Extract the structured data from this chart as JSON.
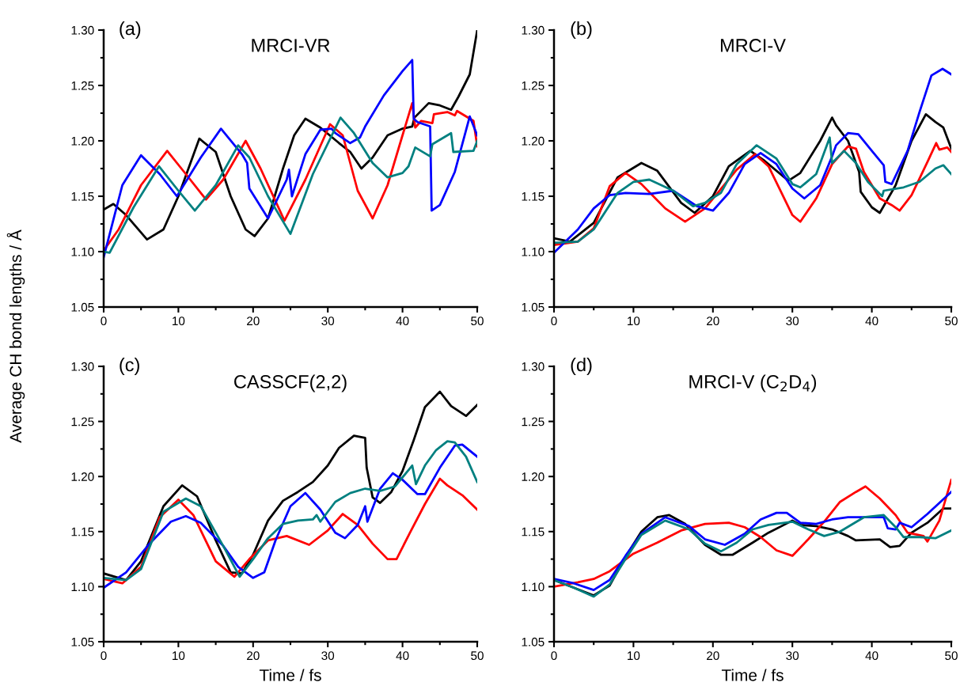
{
  "chart_data": [
    {
      "type": "line",
      "title": "MRCI-VR",
      "annotations": [
        "(a)"
      ],
      "ylabel": "Average CH bond lengths / Å",
      "xlim": [
        0,
        50
      ],
      "ylim": [
        1.05,
        1.3
      ],
      "xticks": [
        0,
        {
          "value": 5,
          "label": null
        },
        10,
        {
          "value": 15,
          "label": null
        },
        20,
        {
          "value": 25,
          "label": null
        },
        30,
        {
          "value": 35,
          "label": null
        },
        40,
        {
          "value": 45,
          "label": null
        },
        50
      ],
      "yticks": [
        {
          "value": 1.05,
          "label": "1.05"
        },
        {
          "value": 1.075,
          "label": null
        },
        {
          "value": 1.1,
          "label": "1.10"
        },
        {
          "value": 1.125,
          "label": null
        },
        {
          "value": 1.15,
          "label": "1.15"
        },
        {
          "value": 1.175,
          "label": null
        },
        {
          "value": 1.2,
          "label": "1.20"
        },
        {
          "value": 1.225,
          "label": null
        },
        {
          "value": 1.25,
          "label": "1.25"
        },
        {
          "value": 1.275,
          "label": null
        },
        {
          "value": 1.3,
          "label": "1.30"
        }
      ],
      "series": [
        {
          "color": "#000000",
          "x": [
            0,
            1.3,
            3,
            5.8,
            8,
            10,
            12.8,
            15,
            17,
            19,
            20.2,
            22,
            24,
            25.5,
            27,
            29,
            31.5,
            33,
            34.5,
            36,
            38,
            40,
            41.3,
            41.6,
            43.5,
            45,
            46.5,
            47.5,
            49,
            50
          ],
          "values": [
            1.138,
            1.143,
            1.133,
            1.111,
            1.12,
            1.15,
            1.202,
            1.19,
            1.15,
            1.12,
            1.114,
            1.13,
            1.175,
            1.205,
            1.22,
            1.212,
            1.198,
            1.19,
            1.175,
            1.185,
            1.205,
            1.211,
            1.213,
            1.221,
            1.234,
            1.232,
            1.228,
            1.24,
            1.26,
            1.3
          ]
        },
        {
          "color": "#ff0000",
          "x": [
            0,
            2,
            5,
            8.5,
            11,
            13.7,
            16,
            19,
            21,
            24.2,
            27,
            30.3,
            32,
            34,
            36,
            38,
            40,
            41.3,
            41.7,
            42.5,
            44,
            44.2,
            46,
            47,
            47.3,
            49.5,
            50
          ],
          "values": [
            1.101,
            1.12,
            1.16,
            1.191,
            1.17,
            1.147,
            1.165,
            1.2,
            1.175,
            1.128,
            1.165,
            1.215,
            1.205,
            1.155,
            1.13,
            1.16,
            1.205,
            1.234,
            1.212,
            1.218,
            1.216,
            1.224,
            1.226,
            1.223,
            1.227,
            1.218,
            1.195
          ]
        },
        {
          "color": "#0000ff",
          "x": [
            0,
            2.5,
            5,
            7.5,
            9.8,
            13,
            15.7,
            18.5,
            19.2,
            19.5,
            22,
            24.5,
            24.8,
            25.2,
            27,
            29,
            30.5,
            31,
            33,
            34.3,
            35,
            37.5,
            40,
            41.3,
            41.5,
            42,
            43.7,
            43.9,
            45,
            47,
            49,
            50
          ],
          "values": [
            1.095,
            1.16,
            1.187,
            1.17,
            1.15,
            1.185,
            1.211,
            1.188,
            1.18,
            1.157,
            1.13,
            1.165,
            1.174,
            1.15,
            1.188,
            1.21,
            1.211,
            1.207,
            1.198,
            1.203,
            1.213,
            1.241,
            1.263,
            1.273,
            1.22,
            1.217,
            1.213,
            1.137,
            1.142,
            1.172,
            1.222,
            1.205
          ]
        },
        {
          "color": "#008080",
          "x": [
            0,
            0.8,
            4,
            7.4,
            10,
            12.2,
            15,
            18,
            19.5,
            22,
            25,
            28,
            31.7,
            33.5,
            36,
            38,
            40,
            40.8,
            41.7,
            43.7,
            44,
            46.5,
            46.8,
            49.5,
            50
          ],
          "values": [
            1.1,
            1.099,
            1.14,
            1.177,
            1.155,
            1.137,
            1.16,
            1.196,
            1.185,
            1.15,
            1.116,
            1.17,
            1.221,
            1.207,
            1.18,
            1.167,
            1.171,
            1.177,
            1.194,
            1.186,
            1.197,
            1.207,
            1.19,
            1.191,
            1.2
          ]
        }
      ]
    },
    {
      "type": "line",
      "title": "MRCI-V",
      "annotations": [
        "(b)"
      ],
      "xlim": [
        0,
        50
      ],
      "ylim": [
        1.05,
        1.3
      ],
      "xticks": [
        0,
        {
          "value": 5,
          "label": null
        },
        10,
        {
          "value": 15,
          "label": null
        },
        20,
        {
          "value": 25,
          "label": null
        },
        30,
        {
          "value": 35,
          "label": null
        },
        40,
        {
          "value": 45,
          "label": null
        },
        50
      ],
      "yticks": [
        {
          "value": 1.05,
          "label": "1.05"
        },
        {
          "value": 1.075,
          "label": null
        },
        {
          "value": 1.1,
          "label": "1.10"
        },
        {
          "value": 1.125,
          "label": null
        },
        {
          "value": 1.15,
          "label": "1.15"
        },
        {
          "value": 1.175,
          "label": null
        },
        {
          "value": 1.2,
          "label": "1.20"
        },
        {
          "value": 1.225,
          "label": null
        },
        {
          "value": 1.25,
          "label": "1.25"
        },
        {
          "value": 1.275,
          "label": null
        },
        {
          "value": 1.3,
          "label": "1.30"
        }
      ],
      "series": [
        {
          "color": "#000000",
          "x": [
            0,
            2,
            5,
            8,
            11,
            13,
            16,
            17.7,
            20,
            22,
            24.7,
            26.5,
            29.5,
            31,
            33.5,
            35,
            35.5,
            37,
            38.4,
            38.6,
            40,
            41,
            43,
            45,
            46.8,
            48,
            49,
            50
          ],
          "values": [
            1.112,
            1.109,
            1.126,
            1.167,
            1.18,
            1.173,
            1.144,
            1.135,
            1.15,
            1.177,
            1.191,
            1.182,
            1.164,
            1.171,
            1.2,
            1.221,
            1.214,
            1.2,
            1.172,
            1.154,
            1.14,
            1.135,
            1.16,
            1.2,
            1.224,
            1.217,
            1.212,
            1.193
          ]
        },
        {
          "color": "#ff0000",
          "x": [
            0,
            3,
            5,
            7,
            9,
            11,
            14,
            16.5,
            19,
            23,
            25.3,
            27,
            30,
            31,
            33,
            35,
            37,
            38,
            39,
            41,
            42.5,
            43.5,
            45,
            47,
            48.1,
            48.5,
            49.5,
            50
          ],
          "values": [
            1.106,
            1.109,
            1.121,
            1.159,
            1.171,
            1.161,
            1.139,
            1.127,
            1.139,
            1.174,
            1.188,
            1.177,
            1.133,
            1.127,
            1.148,
            1.179,
            1.195,
            1.193,
            1.172,
            1.148,
            1.142,
            1.137,
            1.151,
            1.181,
            1.198,
            1.192,
            1.194,
            1.19
          ]
        },
        {
          "color": "#0000ff",
          "x": [
            0,
            3,
            5,
            7,
            9,
            12,
            15,
            18,
            20,
            22,
            24,
            26,
            28,
            30,
            31.5,
            33.5,
            35,
            35.5,
            37,
            38.3,
            40,
            41.5,
            41.7,
            42.5,
            44.5,
            46,
            47.5,
            48.9,
            50
          ],
          "values": [
            1.099,
            1.12,
            1.139,
            1.151,
            1.153,
            1.152,
            1.155,
            1.141,
            1.137,
            1.153,
            1.179,
            1.189,
            1.179,
            1.157,
            1.148,
            1.16,
            1.186,
            1.196,
            1.207,
            1.206,
            1.191,
            1.178,
            1.163,
            1.161,
            1.191,
            1.226,
            1.259,
            1.265,
            1.26
          ]
        },
        {
          "color": "#008080",
          "x": [
            0,
            3,
            5,
            8,
            10,
            12,
            15,
            17.5,
            19,
            21,
            23,
            25.5,
            28,
            30,
            31,
            33,
            34.7,
            35,
            36.5,
            38,
            39.5,
            41.3,
            41.5,
            44,
            46,
            48,
            49,
            50
          ],
          "values": [
            1.108,
            1.109,
            1.12,
            1.153,
            1.163,
            1.165,
            1.155,
            1.141,
            1.144,
            1.153,
            1.179,
            1.196,
            1.184,
            1.161,
            1.158,
            1.17,
            1.203,
            1.18,
            1.191,
            1.18,
            1.163,
            1.15,
            1.155,
            1.158,
            1.163,
            1.175,
            1.178,
            1.17
          ]
        }
      ]
    },
    {
      "type": "line",
      "title": "CASSCF(2,2)",
      "annotations": [
        "(c)"
      ],
      "xlabel": "Time / fs",
      "xlim": [
        0,
        50
      ],
      "ylim": [
        1.05,
        1.3
      ],
      "xticks": [
        0,
        {
          "value": 5,
          "label": null
        },
        10,
        {
          "value": 15,
          "label": null
        },
        20,
        {
          "value": 25,
          "label": null
        },
        30,
        {
          "value": 35,
          "label": null
        },
        40,
        {
          "value": 45,
          "label": null
        },
        50
      ],
      "yticks": [
        {
          "value": 1.05,
          "label": "1.05"
        },
        {
          "value": 1.075,
          "label": null
        },
        {
          "value": 1.1,
          "label": "1.10"
        },
        {
          "value": 1.125,
          "label": null
        },
        {
          "value": 1.15,
          "label": "1.15"
        },
        {
          "value": 1.175,
          "label": null
        },
        {
          "value": 1.2,
          "label": "1.20"
        },
        {
          "value": 1.225,
          "label": null
        },
        {
          "value": 1.25,
          "label": "1.25"
        },
        {
          "value": 1.275,
          "label": null
        },
        {
          "value": 1.3,
          "label": "1.30"
        }
      ],
      "series": [
        {
          "color": "#000000",
          "x": [
            0,
            3,
            5,
            8,
            10.5,
            12.5,
            15,
            17,
            18.5,
            20,
            22,
            24,
            26,
            28,
            30,
            31.5,
            33.5,
            35,
            35.2,
            36,
            37,
            38.5,
            40,
            41.5,
            43,
            45,
            46.5,
            48.5,
            50
          ],
          "values": [
            1.112,
            1.106,
            1.123,
            1.173,
            1.192,
            1.182,
            1.142,
            1.113,
            1.112,
            1.129,
            1.16,
            1.178,
            1.186,
            1.195,
            1.21,
            1.226,
            1.237,
            1.235,
            1.208,
            1.181,
            1.176,
            1.186,
            1.205,
            1.233,
            1.263,
            1.277,
            1.264,
            1.255,
            1.265
          ]
        },
        {
          "color": "#ff0000",
          "x": [
            0,
            2.5,
            5,
            7.5,
            10,
            12,
            15,
            17.5,
            19.5,
            22,
            24.5,
            27.5,
            30,
            32,
            34,
            36,
            38,
            39.2,
            41,
            43,
            45,
            46,
            48,
            50
          ],
          "values": [
            1.107,
            1.103,
            1.118,
            1.163,
            1.179,
            1.165,
            1.123,
            1.109,
            1.125,
            1.142,
            1.146,
            1.138,
            1.151,
            1.166,
            1.156,
            1.139,
            1.125,
            1.125,
            1.149,
            1.175,
            1.198,
            1.192,
            1.183,
            1.17
          ]
        },
        {
          "color": "#0000ff",
          "x": [
            0,
            3,
            6,
            9,
            11,
            13,
            16,
            18,
            20,
            21.5,
            23,
            25,
            27,
            29,
            31,
            32.3,
            34,
            35,
            35.3,
            37,
            38.7,
            40,
            42,
            43,
            45,
            47,
            48,
            50
          ],
          "values": [
            1.099,
            1.113,
            1.138,
            1.159,
            1.164,
            1.158,
            1.137,
            1.118,
            1.108,
            1.113,
            1.142,
            1.173,
            1.185,
            1.17,
            1.149,
            1.144,
            1.156,
            1.173,
            1.159,
            1.189,
            1.203,
            1.197,
            1.184,
            1.184,
            1.208,
            1.228,
            1.229,
            1.218
          ]
        },
        {
          "color": "#008080",
          "x": [
            0,
            3,
            5,
            8,
            11,
            13,
            16,
            18.2,
            20,
            22,
            24,
            26,
            28,
            28.5,
            29,
            31,
            31.5,
            33,
            35,
            37,
            39,
            41.3,
            41.8,
            43,
            44.5,
            46,
            47,
            48.5,
            50
          ],
          "values": [
            1.108,
            1.106,
            1.116,
            1.168,
            1.18,
            1.173,
            1.137,
            1.109,
            1.125,
            1.144,
            1.157,
            1.16,
            1.161,
            1.165,
            1.159,
            1.177,
            1.179,
            1.185,
            1.189,
            1.187,
            1.191,
            1.21,
            1.193,
            1.21,
            1.224,
            1.232,
            1.231,
            1.218,
            1.195
          ]
        }
      ]
    },
    {
      "type": "line",
      "title": "MRCI-V (C$_{2}$D$_{4}$)",
      "annotations": [
        "(d)"
      ],
      "xlabel": "Time / fs",
      "xlim": [
        0,
        50
      ],
      "ylim": [
        1.05,
        1.3
      ],
      "xticks": [
        0,
        {
          "value": 5,
          "label": null
        },
        10,
        {
          "value": 15,
          "label": null
        },
        20,
        {
          "value": 25,
          "label": null
        },
        30,
        {
          "value": 35,
          "label": null
        },
        40,
        {
          "value": 45,
          "label": null
        },
        50
      ],
      "yticks": [
        {
          "value": 1.05,
          "label": "1.05"
        },
        {
          "value": 1.075,
          "label": null
        },
        {
          "value": 1.1,
          "label": "1.10"
        },
        {
          "value": 1.125,
          "label": null
        },
        {
          "value": 1.15,
          "label": "1.15"
        },
        {
          "value": 1.175,
          "label": null
        },
        {
          "value": 1.2,
          "label": "1.20"
        },
        {
          "value": 1.225,
          "label": null
        },
        {
          "value": 1.25,
          "label": "1.25"
        },
        {
          "value": 1.275,
          "label": null
        },
        {
          "value": 1.3,
          "label": "1.30"
        }
      ],
      "series": [
        {
          "color": "#000000",
          "x": [
            0,
            2.5,
            5,
            7,
            9,
            11,
            13,
            14.5,
            16.5,
            19,
            21,
            22.5,
            25,
            27,
            30,
            31,
            33,
            35,
            37,
            38,
            41,
            42.3,
            43.5,
            45,
            47,
            49,
            50
          ],
          "values": [
            1.106,
            1.099,
            1.092,
            1.101,
            1.127,
            1.15,
            1.163,
            1.165,
            1.157,
            1.138,
            1.129,
            1.129,
            1.14,
            1.149,
            1.16,
            1.156,
            1.155,
            1.152,
            1.146,
            1.142,
            1.143,
            1.136,
            1.137,
            1.149,
            1.158,
            1.171,
            1.171
          ]
        },
        {
          "color": "#ff0000",
          "x": [
            0,
            3,
            5,
            7,
            10,
            13,
            16,
            19,
            22,
            24,
            26,
            28,
            30,
            32,
            34,
            36,
            38,
            39.2,
            41,
            43,
            44.5,
            46.5,
            47,
            48.5,
            50
          ],
          "values": [
            1.1,
            1.104,
            1.107,
            1.114,
            1.13,
            1.14,
            1.151,
            1.157,
            1.158,
            1.154,
            1.145,
            1.133,
            1.128,
            1.143,
            1.159,
            1.177,
            1.186,
            1.191,
            1.18,
            1.165,
            1.149,
            1.146,
            1.141,
            1.16,
            1.197
          ]
        },
        {
          "color": "#0000ff",
          "x": [
            0,
            2.5,
            5,
            7,
            9,
            11,
            14,
            17,
            19,
            21.5,
            24,
            26,
            28,
            29.3,
            31,
            33,
            35,
            37,
            41.5,
            42,
            43,
            43.5,
            45,
            47,
            50
          ],
          "values": [
            1.107,
            1.103,
            1.097,
            1.106,
            1.128,
            1.148,
            1.163,
            1.155,
            1.143,
            1.138,
            1.148,
            1.161,
            1.167,
            1.167,
            1.158,
            1.157,
            1.161,
            1.163,
            1.163,
            1.153,
            1.152,
            1.158,
            1.154,
            1.166,
            1.186
          ]
        },
        {
          "color": "#008080",
          "x": [
            0,
            2.5,
            5,
            7,
            9,
            11,
            14,
            17,
            19,
            21,
            23,
            25,
            27,
            30,
            32,
            34,
            36,
            39,
            41.5,
            43,
            44,
            46,
            48,
            50
          ],
          "values": [
            1.106,
            1.099,
            1.091,
            1.102,
            1.125,
            1.147,
            1.16,
            1.152,
            1.139,
            1.132,
            1.14,
            1.152,
            1.156,
            1.159,
            1.152,
            1.146,
            1.15,
            1.163,
            1.165,
            1.154,
            1.145,
            1.145,
            1.144,
            1.151
          ]
        }
      ]
    }
  ]
}
